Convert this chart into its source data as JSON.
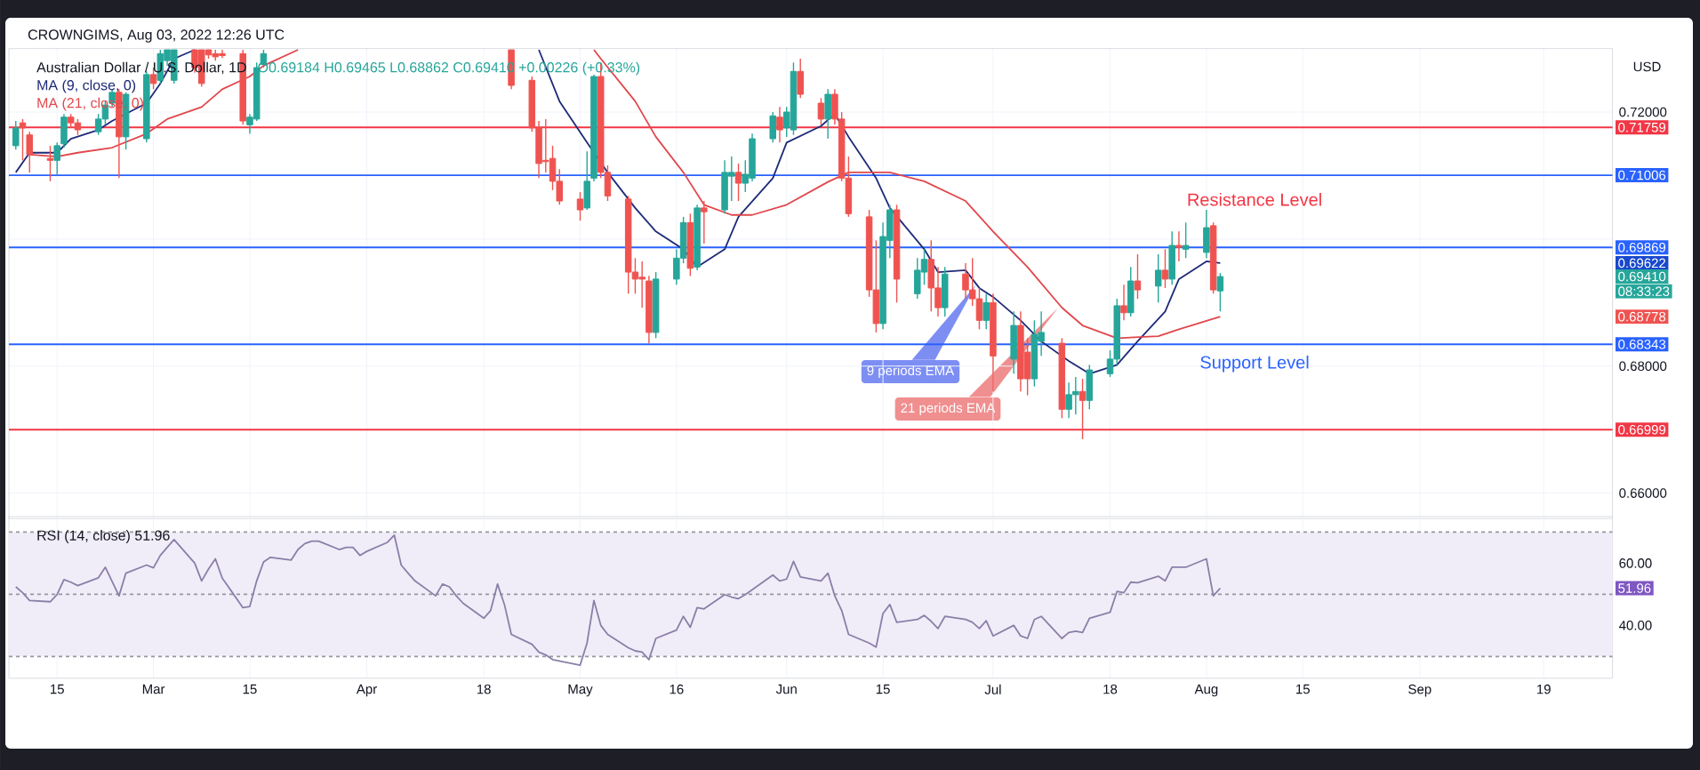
{
  "chart_data": [
    {
      "type": "candlestick",
      "title": "Australian Dollar / U.S. Dollar, 1D",
      "subtitle": "O0.69184 H0.69465 L0.68862 C0.69410 +0.00226 (+0.33%)",
      "ylabel": "USD",
      "x": [
        "2022-02-09",
        "2022-02-10",
        "2022-02-11",
        "2022-02-14",
        "2022-02-15",
        "2022-02-16",
        "2022-02-17",
        "2022-02-18",
        "2022-02-21",
        "2022-02-22",
        "2022-02-23",
        "2022-02-24",
        "2022-02-25",
        "2022-02-28",
        "2022-03-01",
        "2022-03-02",
        "2022-03-03",
        "2022-03-04",
        "2022-03-07",
        "2022-03-08",
        "2022-03-09",
        "2022-03-10",
        "2022-03-11",
        "2022-03-14",
        "2022-03-15",
        "2022-03-16",
        "2022-03-17",
        "2022-04-22",
        "2022-04-25",
        "2022-04-26",
        "2022-04-27",
        "2022-04-28",
        "2022-04-29",
        "2022-05-02",
        "2022-05-03",
        "2022-05-04",
        "2022-05-05",
        "2022-05-06",
        "2022-05-09",
        "2022-05-10",
        "2022-05-11",
        "2022-05-12",
        "2022-05-13",
        "2022-05-16",
        "2022-05-17",
        "2022-05-18",
        "2022-05-19",
        "2022-05-20",
        "2022-05-23",
        "2022-05-24",
        "2022-05-25",
        "2022-05-26",
        "2022-05-27",
        "2022-05-30",
        "2022-05-31",
        "2022-06-01",
        "2022-06-02",
        "2022-06-03",
        "2022-06-06",
        "2022-06-07",
        "2022-06-08",
        "2022-06-09",
        "2022-06-10",
        "2022-06-13",
        "2022-06-14",
        "2022-06-15",
        "2022-06-16",
        "2022-06-17",
        "2022-06-20",
        "2022-06-21",
        "2022-06-22",
        "2022-06-23",
        "2022-06-24",
        "2022-06-27",
        "2022-06-28",
        "2022-06-29",
        "2022-06-30",
        "2022-07-01",
        "2022-07-04",
        "2022-07-05",
        "2022-07-06",
        "2022-07-07",
        "2022-07-08",
        "2022-07-11",
        "2022-07-12",
        "2022-07-13",
        "2022-07-14",
        "2022-07-15",
        "2022-07-18",
        "2022-07-19",
        "2022-07-20",
        "2022-07-21",
        "2022-07-22",
        "2022-07-25",
        "2022-07-26",
        "2022-07-27",
        "2022-07-28",
        "2022-07-29",
        "2022-08-01",
        "2022-08-02",
        "2022-08-03"
      ],
      "ohlc": [
        [
          0.7147,
          0.7186,
          0.7141,
          0.7175
        ],
        [
          0.7183,
          0.7189,
          0.7124,
          0.7175
        ],
        [
          0.7164,
          0.7169,
          0.7105,
          0.7133
        ],
        [
          0.7127,
          0.7147,
          0.7091,
          0.7124
        ],
        [
          0.7124,
          0.7152,
          0.7102,
          0.7147
        ],
        [
          0.715,
          0.7197,
          0.7144,
          0.7192
        ],
        [
          0.7192,
          0.7197,
          0.7175,
          0.7183
        ],
        [
          0.7183,
          0.7189,
          0.7164,
          0.7172
        ],
        [
          0.7169,
          0.7197,
          0.7164,
          0.7189
        ],
        [
          0.7189,
          0.7217,
          0.718,
          0.7211
        ],
        [
          0.7214,
          0.7236,
          0.7208,
          0.7231
        ],
        [
          0.7231,
          0.7236,
          0.7096,
          0.7161
        ],
        [
          0.7161,
          0.7231,
          0.7141,
          0.7228
        ],
        [
          0.7158,
          0.7264,
          0.7152,
          0.7259
        ],
        [
          0.7259,
          0.727,
          0.7236,
          0.7245
        ],
        [
          0.725,
          0.7298,
          0.7245,
          0.7292
        ],
        [
          0.7281,
          0.7298,
          0.7273,
          0.7298
        ],
        [
          0.725,
          0.7298,
          0.7245,
          0.7298
        ],
        [
          0.7298,
          0.7298,
          0.7262,
          0.727
        ],
        [
          0.7298,
          0.7298,
          0.724,
          0.7245
        ],
        [
          0.7298,
          0.7298,
          0.7284,
          0.729
        ],
        [
          0.7292,
          0.7298,
          0.7281,
          0.7287
        ],
        [
          0.7292,
          0.7298,
          0.7285,
          0.7289
        ],
        [
          0.7292,
          0.7298,
          0.718,
          0.7186
        ],
        [
          0.718,
          0.7197,
          0.7166,
          0.7192
        ],
        [
          0.7189,
          0.7278,
          0.7186,
          0.727
        ],
        [
          0.7275,
          0.7298,
          0.727,
          0.7292
        ],
        [
          0.7298,
          0.7298,
          0.7236,
          0.7242
        ],
        [
          0.725,
          0.7256,
          0.7169,
          0.7175
        ],
        [
          0.7175,
          0.7186,
          0.7096,
          0.7119
        ],
        [
          0.7124,
          0.7189,
          0.7105,
          0.7122
        ],
        [
          0.7127,
          0.7147,
          0.7077,
          0.7091
        ],
        [
          0.7091,
          0.711,
          0.7054,
          0.706
        ],
        [
          0.7063,
          0.7074,
          0.7029,
          0.7046
        ],
        [
          0.7049,
          0.7138,
          0.7046,
          0.7091
        ],
        [
          0.7096,
          0.7259,
          0.7091,
          0.7256
        ],
        [
          0.7256,
          0.7278,
          0.7096,
          0.7105
        ],
        [
          0.7105,
          0.7116,
          0.706,
          0.7068
        ],
        [
          0.7063,
          0.7068,
          0.6914,
          0.6948
        ],
        [
          0.6948,
          0.697,
          0.6914,
          0.6937
        ],
        [
          0.694,
          0.6965,
          0.6892,
          0.6937
        ],
        [
          0.6934,
          0.6942,
          0.6836,
          0.6853
        ],
        [
          0.6853,
          0.6948,
          0.6844,
          0.6937
        ],
        [
          0.6937,
          0.6984,
          0.6928,
          0.697
        ],
        [
          0.697,
          0.7035,
          0.6962,
          0.7026
        ],
        [
          0.7026,
          0.704,
          0.6942,
          0.6954
        ],
        [
          0.6956,
          0.7054,
          0.6951,
          0.7049
        ],
        [
          0.7049,
          0.706,
          0.6993,
          0.7043
        ],
        [
          0.7046,
          0.7124,
          0.704,
          0.7105
        ],
        [
          0.7099,
          0.713,
          0.706,
          0.7105
        ],
        [
          0.7105,
          0.7119,
          0.706,
          0.7088
        ],
        [
          0.7088,
          0.7124,
          0.7074,
          0.7102
        ],
        [
          0.7096,
          0.7166,
          0.7091,
          0.7158
        ],
        [
          0.7158,
          0.72,
          0.7152,
          0.7194
        ],
        [
          0.7192,
          0.7208,
          0.7152,
          0.7172
        ],
        [
          0.7175,
          0.7208,
          0.7161,
          0.72
        ],
        [
          0.7172,
          0.7278,
          0.7164,
          0.7264
        ],
        [
          0.7264,
          0.7284,
          0.7222,
          0.7228
        ],
        [
          0.7214,
          0.7222,
          0.718,
          0.7189
        ],
        [
          0.7189,
          0.7236,
          0.7158,
          0.7228
        ],
        [
          0.7228,
          0.7236,
          0.718,
          0.7189
        ],
        [
          0.7189,
          0.72,
          0.7091,
          0.7096
        ],
        [
          0.7096,
          0.713,
          0.7035,
          0.704
        ],
        [
          0.7035,
          0.7046,
          0.6909,
          0.692
        ],
        [
          0.692,
          0.6998,
          0.6853,
          0.6867
        ],
        [
          0.6867,
          0.7026,
          0.6858,
          0.7004
        ],
        [
          0.6998,
          0.7054,
          0.697,
          0.7046
        ],
        [
          0.7046,
          0.7054,
          0.69,
          0.6937
        ],
        [
          0.6914,
          0.697,
          0.6906,
          0.6951
        ],
        [
          0.6948,
          0.6984,
          0.6928,
          0.6968
        ],
        [
          0.6968,
          0.6998,
          0.6886,
          0.6923
        ],
        [
          0.6923,
          0.6956,
          0.6878,
          0.6892
        ],
        [
          0.6892,
          0.6956,
          0.6878,
          0.6945
        ],
        [
          0.6945,
          0.6962,
          0.6906,
          0.692
        ],
        [
          0.692,
          0.697,
          0.6895,
          0.6906
        ],
        [
          0.6906,
          0.6923,
          0.6858,
          0.6872
        ],
        [
          0.6872,
          0.6914,
          0.6858,
          0.69
        ],
        [
          0.69,
          0.6914,
          0.676,
          0.6816
        ],
        [
          0.6811,
          0.6886,
          0.6788,
          0.6864
        ],
        [
          0.6864,
          0.6886,
          0.676,
          0.678
        ],
        [
          0.6822,
          0.6844,
          0.6754,
          0.678
        ],
        [
          0.678,
          0.6872,
          0.6768,
          0.685
        ],
        [
          0.6839,
          0.6886,
          0.6816,
          0.6853
        ],
        [
          0.6836,
          0.6844,
          0.6718,
          0.6732
        ],
        [
          0.6732,
          0.6774,
          0.6718,
          0.6755
        ],
        [
          0.6755,
          0.6783,
          0.6724,
          0.676
        ],
        [
          0.676,
          0.678,
          0.6685,
          0.6746
        ],
        [
          0.6746,
          0.6802,
          0.6732,
          0.6794
        ],
        [
          0.6788,
          0.6825,
          0.6783,
          0.6811
        ],
        [
          0.6811,
          0.6906,
          0.6802,
          0.6895
        ],
        [
          0.6895,
          0.6928,
          0.6872,
          0.6884
        ],
        [
          0.6884,
          0.6956,
          0.6878,
          0.6934
        ],
        [
          0.6934,
          0.6976,
          0.6906,
          0.692
        ],
        [
          0.6926,
          0.6976,
          0.69,
          0.6951
        ],
        [
          0.6951,
          0.6984,
          0.6923,
          0.6937
        ],
        [
          0.6937,
          0.7012,
          0.6928,
          0.699
        ],
        [
          0.699,
          0.7012,
          0.6965,
          0.6987
        ],
        [
          0.6984,
          0.7026,
          0.697,
          0.699
        ],
        [
          0.6979,
          0.7046,
          0.697,
          0.7018
        ],
        [
          0.7021,
          0.7026,
          0.6914,
          0.692
        ],
        [
          0.69184,
          0.69465,
          0.68862,
          0.6941
        ]
      ],
      "series": [
        {
          "name": "MA (9, close, 0)",
          "type": "line",
          "color": "#1e2a78",
          "x": [
            "2022-02-09",
            "2022-02-11",
            "2022-02-15",
            "2022-02-17",
            "2022-02-21",
            "2022-02-23",
            "2022-02-28",
            "2022-03-02",
            "2022-03-04",
            "2022-03-07",
            "2022-03-23",
            "2022-04-26",
            "2022-04-29",
            "2022-05-03",
            "2022-05-06",
            "2022-05-10",
            "2022-05-13",
            "2022-05-17",
            "2022-05-19",
            "2022-05-23",
            "2022-05-25",
            "2022-05-30",
            "2022-06-01",
            "2022-06-06",
            "2022-06-08",
            "2022-06-10",
            "2022-06-14",
            "2022-06-16",
            "2022-06-21",
            "2022-06-23",
            "2022-06-27",
            "2022-06-29",
            "2022-07-01",
            "2022-07-05",
            "2022-07-08",
            "2022-07-12",
            "2022-07-15",
            "2022-07-19",
            "2022-07-22",
            "2022-07-26",
            "2022-07-28",
            "2022-08-01",
            "2022-08-03"
          ],
          "values": [
            0.7105,
            0.7136,
            0.7136,
            0.7158,
            0.7172,
            0.7186,
            0.7214,
            0.7245,
            0.7284,
            0.7298,
            null,
            0.7298,
            0.7217,
            0.7152,
            0.7105,
            0.7049,
            0.7012,
            0.6984,
            0.6956,
            0.6984,
            0.7035,
            0.7096,
            0.7152,
            0.7178,
            0.7197,
            0.7161,
            0.7096,
            0.7049,
            0.6984,
            0.6948,
            0.6951,
            0.6923,
            0.6909,
            0.6872,
            0.6839,
            0.6808,
            0.6788,
            0.6802,
            0.6839,
            0.6886,
            0.6937,
            0.6965,
            0.69622
          ]
        },
        {
          "name": "MA (21, close, 0)",
          "type": "line",
          "color": "#e0474c",
          "x": [
            "2022-02-11",
            "2022-02-15",
            "2022-02-18",
            "2022-02-23",
            "2022-02-28",
            "2022-03-03",
            "2022-03-08",
            "2022-03-11",
            "2022-03-15",
            "2022-03-17",
            "2022-03-22",
            "2022-04-06",
            "2022-05-04",
            "2022-05-05",
            "2022-05-10",
            "2022-05-13",
            "2022-05-17",
            "2022-05-20",
            "2022-05-24",
            "2022-05-27",
            "2022-06-01",
            "2022-06-07",
            "2022-06-10",
            "2022-06-16",
            "2022-06-21",
            "2022-06-27",
            "2022-07-01",
            "2022-07-06",
            "2022-07-11",
            "2022-07-14",
            "2022-07-19",
            "2022-07-25",
            "2022-07-28",
            "2022-08-03"
          ],
          "values": [
            0.7133,
            0.713,
            0.7136,
            0.7144,
            0.7166,
            0.7189,
            0.7208,
            0.7236,
            0.7256,
            0.7273,
            0.7298,
            null,
            0.7298,
            0.7284,
            0.7217,
            0.7161,
            0.7105,
            0.7054,
            0.7038,
            0.7038,
            0.7054,
            0.709,
            0.7105,
            0.7105,
            0.7091,
            0.706,
            0.7012,
            0.6956,
            0.6892,
            0.6864,
            0.6844,
            0.6847,
            0.6858,
            0.68778
          ]
        }
      ],
      "ylim": [
        0.656,
        0.73
      ],
      "yticks": [
        {
          "value": 0.72,
          "label": "0.72000"
        },
        {
          "value": 0.7,
          "label": null
        },
        {
          "value": 0.68,
          "label": "0.68000"
        },
        {
          "value": 0.66,
          "label": "0.66000"
        }
      ],
      "xlim": [
        "2022-02-08",
        "2022-09-29"
      ],
      "xticks": [
        {
          "value": "2022-02-15",
          "label": null
        },
        {
          "value": "2022-03-01",
          "label": null
        },
        {
          "value": "2022-03-15",
          "label": null
        },
        {
          "value": "2022-04-01",
          "label": null
        },
        {
          "value": "2022-04-18",
          "label": null
        },
        {
          "value": "2022-05-02",
          "label": null
        },
        {
          "value": "2022-05-16",
          "label": null
        },
        {
          "value": "2022-06-01",
          "label": null
        },
        {
          "value": "2022-06-15",
          "label": null
        },
        {
          "value": "2022-07-01",
          "label": null
        },
        {
          "value": "2022-07-18",
          "label": null
        },
        {
          "value": "2022-08-01",
          "label": null
        },
        {
          "value": "2022-08-15",
          "label": null
        },
        {
          "value": "2022-09-01",
          "label": null
        },
        {
          "value": "2022-09-19",
          "label": null
        }
      ],
      "tick_labels": "y",
      "grid": true,
      "legend": "top left",
      "ref_lines": [
        {
          "axis": "y",
          "value": 0.71759,
          "label": "0.71759",
          "color": "#f23645"
        },
        {
          "axis": "y",
          "value": 0.71006,
          "label": "0.71006",
          "color": "#2962ff"
        },
        {
          "axis": "y",
          "value": 0.69869,
          "label": "0.69869",
          "color": "#2962ff"
        },
        {
          "axis": "y",
          "value": 0.68343,
          "label": "0.68343",
          "color": "#2962ff"
        },
        {
          "axis": "y",
          "value": 0.66999,
          "label": "0.66999",
          "color": "#f23645"
        }
      ],
      "annotations": [
        "CROWNGIMS, Aug 03, 2022 12:26 UTC",
        {
          "text": "Resistance Level",
          "x": "2022-08-08",
          "y": 0.69869
        },
        {
          "text": "Support Level",
          "x": "2022-08-08",
          "y": 0.68343
        },
        "9 periods EMA",
        "21 periods EMA",
        "0.69622",
        "0.69410",
        "08:33:23",
        "0.68778"
      ]
    },
    {
      "type": "line",
      "title": "RSI (14, close) 51.96",
      "series": [
        {
          "color": "#8a7fa8",
          "x": [
            "2022-02-09",
            "2022-02-10",
            "2022-02-11",
            "2022-02-14",
            "2022-02-15",
            "2022-02-16",
            "2022-02-17",
            "2022-02-18",
            "2022-02-21",
            "2022-02-22",
            "2022-02-24",
            "2022-02-25",
            "2022-02-28",
            "2022-03-01",
            "2022-03-02",
            "2022-03-03",
            "2022-03-04",
            "2022-03-07",
            "2022-03-08",
            "2022-03-09",
            "2022-03-10",
            "2022-03-11",
            "2022-03-14",
            "2022-03-15",
            "2022-03-16",
            "2022-03-17",
            "2022-03-18",
            "2022-03-21",
            "2022-03-22",
            "2022-03-23",
            "2022-03-24",
            "2022-03-25",
            "2022-03-28",
            "2022-03-29",
            "2022-03-30",
            "2022-03-31",
            "2022-04-01",
            "2022-04-04",
            "2022-04-05",
            "2022-04-06",
            "2022-04-07",
            "2022-04-08",
            "2022-04-11",
            "2022-04-12",
            "2022-04-13",
            "2022-04-14",
            "2022-04-15",
            "2022-04-18",
            "2022-04-19",
            "2022-04-20",
            "2022-04-21",
            "2022-04-22",
            "2022-04-25",
            "2022-04-26",
            "2022-04-27",
            "2022-04-28",
            "2022-05-02",
            "2022-05-03",
            "2022-05-04",
            "2022-05-05",
            "2022-05-06",
            "2022-05-09",
            "2022-05-10",
            "2022-05-11",
            "2022-05-12",
            "2022-05-13",
            "2022-05-16",
            "2022-05-17",
            "2022-05-18",
            "2022-05-19",
            "2022-05-20",
            "2022-05-23",
            "2022-05-24",
            "2022-05-25",
            "2022-05-26",
            "2022-05-30",
            "2022-05-31",
            "2022-06-01",
            "2022-06-02",
            "2022-06-03",
            "2022-06-06",
            "2022-06-07",
            "2022-06-08",
            "2022-06-09",
            "2022-06-10",
            "2022-06-13",
            "2022-06-14",
            "2022-06-15",
            "2022-06-16",
            "2022-06-17",
            "2022-06-20",
            "2022-06-21",
            "2022-06-22",
            "2022-06-23",
            "2022-06-24",
            "2022-06-27",
            "2022-06-28",
            "2022-06-29",
            "2022-06-30",
            "2022-07-01",
            "2022-07-04",
            "2022-07-05",
            "2022-07-06",
            "2022-07-07",
            "2022-07-08",
            "2022-07-11",
            "2022-07-12",
            "2022-07-13",
            "2022-07-14",
            "2022-07-15",
            "2022-07-18",
            "2022-07-19",
            "2022-07-20",
            "2022-07-21",
            "2022-07-22",
            "2022-07-25",
            "2022-07-26",
            "2022-07-27",
            "2022-07-28",
            "2022-07-29",
            "2022-08-01",
            "2022-08-02",
            "2022-08-03"
          ],
          "values": [
            52.4,
            50.5,
            48.0,
            47.6,
            49.9,
            54.7,
            53.9,
            52.8,
            55.3,
            58.7,
            49.5,
            56.8,
            59.4,
            58.5,
            62.5,
            65.1,
            67.6,
            60.0,
            54.3,
            58.1,
            61.4,
            55.2,
            45.7,
            46.1,
            54.3,
            60.4,
            61.9,
            61.0,
            64.4,
            66.3,
            67.1,
            67.1,
            64.4,
            65.1,
            65.1,
            62.5,
            63.8,
            66.7,
            69.0,
            59.4,
            56.8,
            54.3,
            49.5,
            53.3,
            52.4,
            49.5,
            47.1,
            42.3,
            44.8,
            53.3,
            46.7,
            37.1,
            33.9,
            31.4,
            30.5,
            29.0,
            27.2,
            34.3,
            48.0,
            40.0,
            37.1,
            32.8,
            31.8,
            31.4,
            29.0,
            35.8,
            38.5,
            42.9,
            39.4,
            45.7,
            45.3,
            49.9,
            49.1,
            48.6,
            49.9,
            56.2,
            54.3,
            54.9,
            60.6,
            55.6,
            54.3,
            56.8,
            49.5,
            44.8,
            37.1,
            34.3,
            33.0,
            43.8,
            46.7,
            41.0,
            41.9,
            43.2,
            41.3,
            39.0,
            42.9,
            41.9,
            41.0,
            39.0,
            41.5,
            36.6,
            40.0,
            36.6,
            35.8,
            41.9,
            42.9,
            35.8,
            37.7,
            38.1,
            37.7,
            42.3,
            44.2,
            50.9,
            50.5,
            53.9,
            53.7,
            55.8,
            54.3,
            58.7,
            58.7,
            58.7,
            61.4,
            49.5,
            51.96
          ]
        }
      ],
      "ylim": [
        23,
        75
      ],
      "yticks": [
        {
          "value": 60,
          "label": "60.00"
        },
        {
          "value": 40,
          "label": "40.00"
        }
      ],
      "xlim": [
        "2022-02-08",
        "2022-09-29"
      ],
      "xticks": [
        {
          "value": "2022-02-15",
          "label": "15"
        },
        {
          "value": "2022-03-01",
          "label": "Mar"
        },
        {
          "value": "2022-03-15",
          "label": "15"
        },
        {
          "value": "2022-04-01",
          "label": "Apr"
        },
        {
          "value": "2022-04-18",
          "label": "18"
        },
        {
          "value": "2022-05-02",
          "label": "May"
        },
        {
          "value": "2022-05-16",
          "label": "16"
        },
        {
          "value": "2022-06-01",
          "label": "Jun"
        },
        {
          "value": "2022-06-15",
          "label": "15"
        },
        {
          "value": "2022-07-01",
          "label": "Jul"
        },
        {
          "value": "2022-07-18",
          "label": "18"
        },
        {
          "value": "2022-08-01",
          "label": "Aug"
        },
        {
          "value": "2022-08-15",
          "label": "15"
        },
        {
          "value": "2022-09-01",
          "label": "Sep"
        },
        {
          "value": "2022-09-19",
          "label": "19"
        }
      ],
      "grid": true,
      "bands": [
        {
          "axis": "y",
          "from": 30,
          "to": 70,
          "color": "#f1edf8"
        }
      ],
      "ref_lines": [
        {
          "axis": "y",
          "value": 70,
          "color": "#9598a1",
          "line_style": "dashed"
        },
        {
          "axis": "y",
          "value": 50,
          "color": "#9598a1",
          "line_style": "dashed"
        },
        {
          "axis": "y",
          "value": 30,
          "color": "#9598a1",
          "line_style": "dashed"
        }
      ],
      "annotations": [
        "51.96"
      ]
    }
  ]
}
